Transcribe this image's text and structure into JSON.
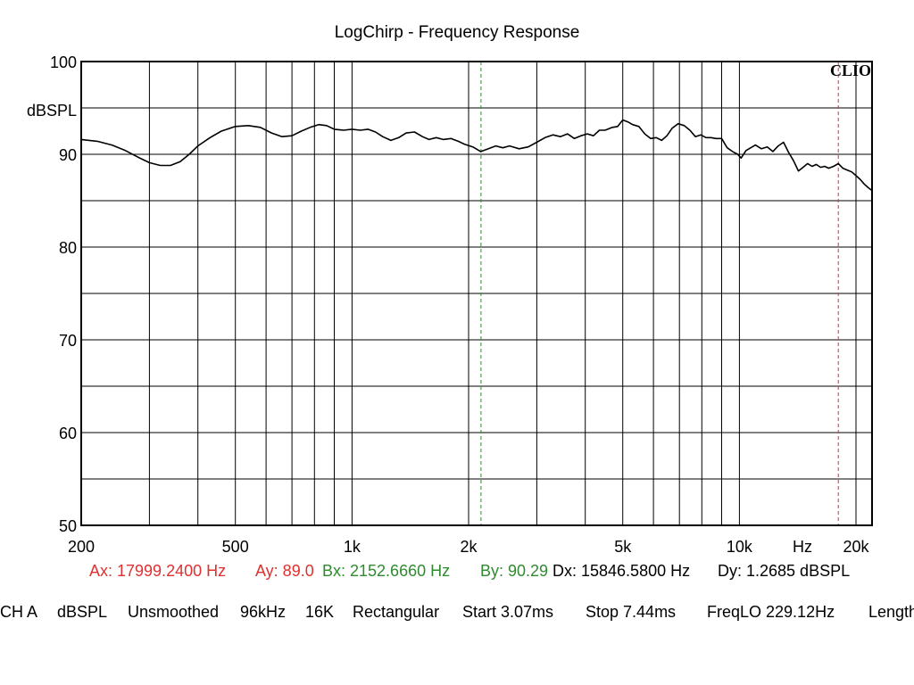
{
  "chart_data": {
    "type": "line",
    "title": "LogChirp - Frequency Response",
    "ylabel": "dBSPL",
    "xunit": "Hz",
    "brand": "CLIO",
    "x_scale": "log",
    "xlim": [
      200,
      22000
    ],
    "ylim": [
      50,
      100
    ],
    "grid": true,
    "x_ticks": [
      {
        "value": 200,
        "label": "200"
      },
      {
        "value": 500,
        "label": "500"
      },
      {
        "value": 1000,
        "label": "1k"
      },
      {
        "value": 2000,
        "label": "2k"
      },
      {
        "value": 5000,
        "label": "5k"
      },
      {
        "value": 10000,
        "label": "10k"
      },
      {
        "value": 20000,
        "label": "20k"
      }
    ],
    "y_ticks": [
      {
        "value": 100,
        "label": "100"
      },
      {
        "value": 90,
        "label": "90"
      },
      {
        "value": 80,
        "label": "80"
      },
      {
        "value": 70,
        "label": "70"
      },
      {
        "value": 60,
        "label": "60"
      },
      {
        "value": 50,
        "label": "50"
      }
    ],
    "cursors": [
      {
        "name": "A",
        "x": 17999.24,
        "color": "#e03030"
      },
      {
        "name": "B",
        "x": 2152.666,
        "color": "#2e8b2e"
      }
    ],
    "series": [
      {
        "color": "#000000",
        "points": [
          [
            200,
            91.6
          ],
          [
            220,
            91.4
          ],
          [
            240,
            91.0
          ],
          [
            260,
            90.4
          ],
          [
            280,
            89.7
          ],
          [
            300,
            89.1
          ],
          [
            320,
            88.8
          ],
          [
            340,
            88.8
          ],
          [
            360,
            89.2
          ],
          [
            380,
            90.0
          ],
          [
            400,
            90.9
          ],
          [
            430,
            91.8
          ],
          [
            460,
            92.5
          ],
          [
            500,
            93.0
          ],
          [
            540,
            93.1
          ],
          [
            580,
            92.9
          ],
          [
            620,
            92.3
          ],
          [
            660,
            91.9
          ],
          [
            700,
            92.0
          ],
          [
            740,
            92.5
          ],
          [
            780,
            92.9
          ],
          [
            820,
            93.2
          ],
          [
            860,
            93.1
          ],
          [
            900,
            92.7
          ],
          [
            950,
            92.6
          ],
          [
            1000,
            92.7
          ],
          [
            1050,
            92.6
          ],
          [
            1100,
            92.7
          ],
          [
            1150,
            92.4
          ],
          [
            1200,
            91.9
          ],
          [
            1260,
            91.5
          ],
          [
            1320,
            91.8
          ],
          [
            1380,
            92.3
          ],
          [
            1450,
            92.4
          ],
          [
            1520,
            91.9
          ],
          [
            1580,
            91.6
          ],
          [
            1650,
            91.8
          ],
          [
            1720,
            91.6
          ],
          [
            1800,
            91.7
          ],
          [
            1880,
            91.4
          ],
          [
            1950,
            91.1
          ],
          [
            2050,
            90.8
          ],
          [
            2150,
            90.3
          ],
          [
            2250,
            90.6
          ],
          [
            2350,
            90.9
          ],
          [
            2450,
            90.7
          ],
          [
            2550,
            90.9
          ],
          [
            2700,
            90.6
          ],
          [
            2850,
            90.8
          ],
          [
            3000,
            91.3
          ],
          [
            3150,
            91.8
          ],
          [
            3300,
            92.1
          ],
          [
            3450,
            91.9
          ],
          [
            3600,
            92.2
          ],
          [
            3750,
            91.7
          ],
          [
            3900,
            92.0
          ],
          [
            4050,
            92.2
          ],
          [
            4200,
            92.0
          ],
          [
            4350,
            92.6
          ],
          [
            4500,
            92.6
          ],
          [
            4700,
            92.9
          ],
          [
            4850,
            93.0
          ],
          [
            5000,
            93.7
          ],
          [
            5150,
            93.5
          ],
          [
            5300,
            93.2
          ],
          [
            5500,
            93.0
          ],
          [
            5700,
            92.2
          ],
          [
            5900,
            91.7
          ],
          [
            6100,
            91.8
          ],
          [
            6300,
            91.5
          ],
          [
            6500,
            92.0
          ],
          [
            6700,
            92.8
          ],
          [
            6950,
            93.3
          ],
          [
            7200,
            93.1
          ],
          [
            7450,
            92.6
          ],
          [
            7700,
            91.9
          ],
          [
            7950,
            92.1
          ],
          [
            8200,
            91.8
          ],
          [
            8450,
            91.8
          ],
          [
            8700,
            91.7
          ],
          [
            9000,
            91.7
          ],
          [
            9300,
            90.7
          ],
          [
            9600,
            90.3
          ],
          [
            9900,
            90.0
          ],
          [
            10100,
            89.6
          ],
          [
            10400,
            90.4
          ],
          [
            10700,
            90.7
          ],
          [
            11000,
            91.0
          ],
          [
            11400,
            90.6
          ],
          [
            11800,
            90.8
          ],
          [
            12200,
            90.3
          ],
          [
            12600,
            90.9
          ],
          [
            13000,
            91.3
          ],
          [
            13400,
            90.2
          ],
          [
            13800,
            89.3
          ],
          [
            14200,
            88.2
          ],
          [
            14600,
            88.6
          ],
          [
            15000,
            89.0
          ],
          [
            15400,
            88.7
          ],
          [
            15800,
            88.9
          ],
          [
            16200,
            88.6
          ],
          [
            16600,
            88.7
          ],
          [
            17000,
            88.5
          ],
          [
            17500,
            88.7
          ],
          [
            18000,
            89.0
          ],
          [
            18500,
            88.5
          ],
          [
            19000,
            88.3
          ],
          [
            19500,
            88.1
          ],
          [
            20000,
            87.7
          ],
          [
            20500,
            87.3
          ],
          [
            21000,
            86.8
          ],
          [
            21500,
            86.4
          ],
          [
            22000,
            86.1
          ]
        ]
      }
    ]
  },
  "readout": {
    "ax": "Ax: 17999.2400 Hz",
    "ay": "Ay: 89.0",
    "bx": "Bx: 2152.6660 Hz",
    "by": "By: 90.29",
    "dx": "Dx: 15846.5800 Hz",
    "dy": "Dy: 1.2685 dBSPL",
    "a_color": "#e03030",
    "b_color": "#2e8b2e"
  },
  "status": {
    "channel": "CH A",
    "unit": "dBSPL",
    "smoothing": "Unsmoothed",
    "rate": "96kHz",
    "size": "16K",
    "window": "Rectangular",
    "start": "Start 3.07ms",
    "stop": "Stop 7.44ms",
    "freqlo": "FreqLO 229.12Hz",
    "length": "Length"
  }
}
